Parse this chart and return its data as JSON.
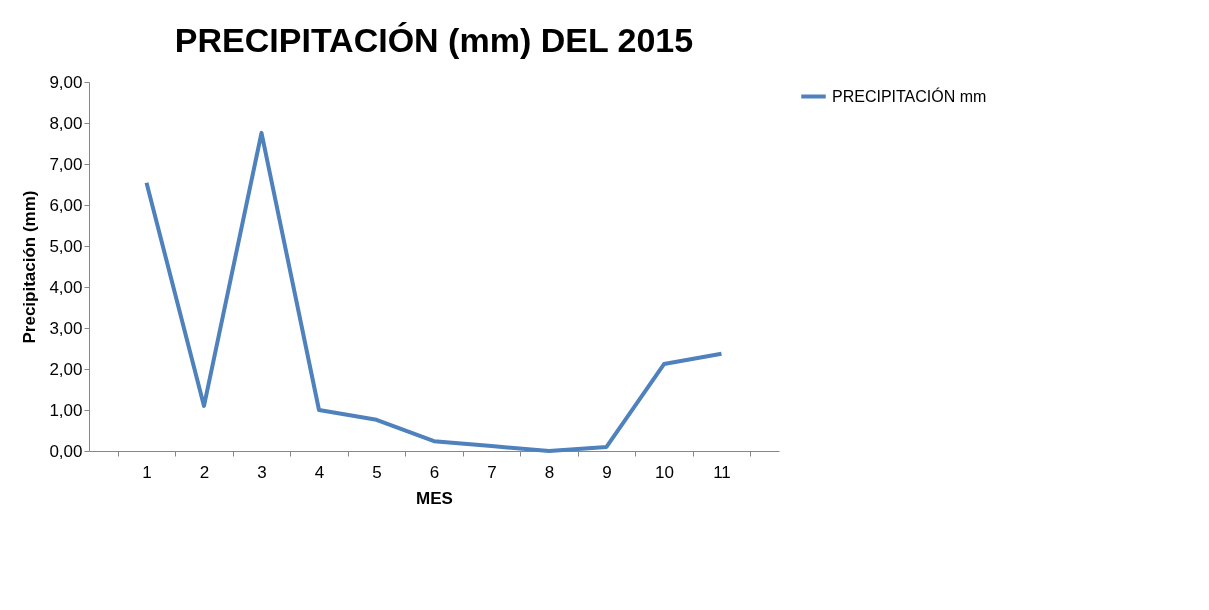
{
  "chart_data": {
    "type": "line",
    "title": "PRECIPITACIÓN (mm) DEL 2015",
    "xlabel": "MES",
    "ylabel": "Precipitación (mm)",
    "categories": [
      "1",
      "2",
      "3",
      "4",
      "5",
      "6",
      "7",
      "8",
      "9",
      "10",
      "11"
    ],
    "series": [
      {
        "name": "PRECIPITACIÓN mm",
        "color": "#4f81bd",
        "values": [
          6.54,
          1.1,
          7.76,
          1.0,
          0.76,
          0.24,
          0.12,
          0.0,
          0.1,
          2.12,
          2.37
        ]
      }
    ],
    "ylim": [
      0,
      9
    ],
    "yticks": [
      {
        "value": 0,
        "label": "0,00"
      },
      {
        "value": 1,
        "label": "1,00"
      },
      {
        "value": 2,
        "label": "2,00"
      },
      {
        "value": 3,
        "label": "3,00"
      },
      {
        "value": 4,
        "label": "4,00"
      },
      {
        "value": 5,
        "label": "5,00"
      },
      {
        "value": 6,
        "label": "6,00"
      },
      {
        "value": 7,
        "label": "7,00"
      },
      {
        "value": 8,
        "label": "8,00"
      },
      {
        "value": 9,
        "label": "9,00"
      }
    ],
    "grid": false,
    "legend": "right",
    "marker": "none",
    "line_style": "solid"
  }
}
